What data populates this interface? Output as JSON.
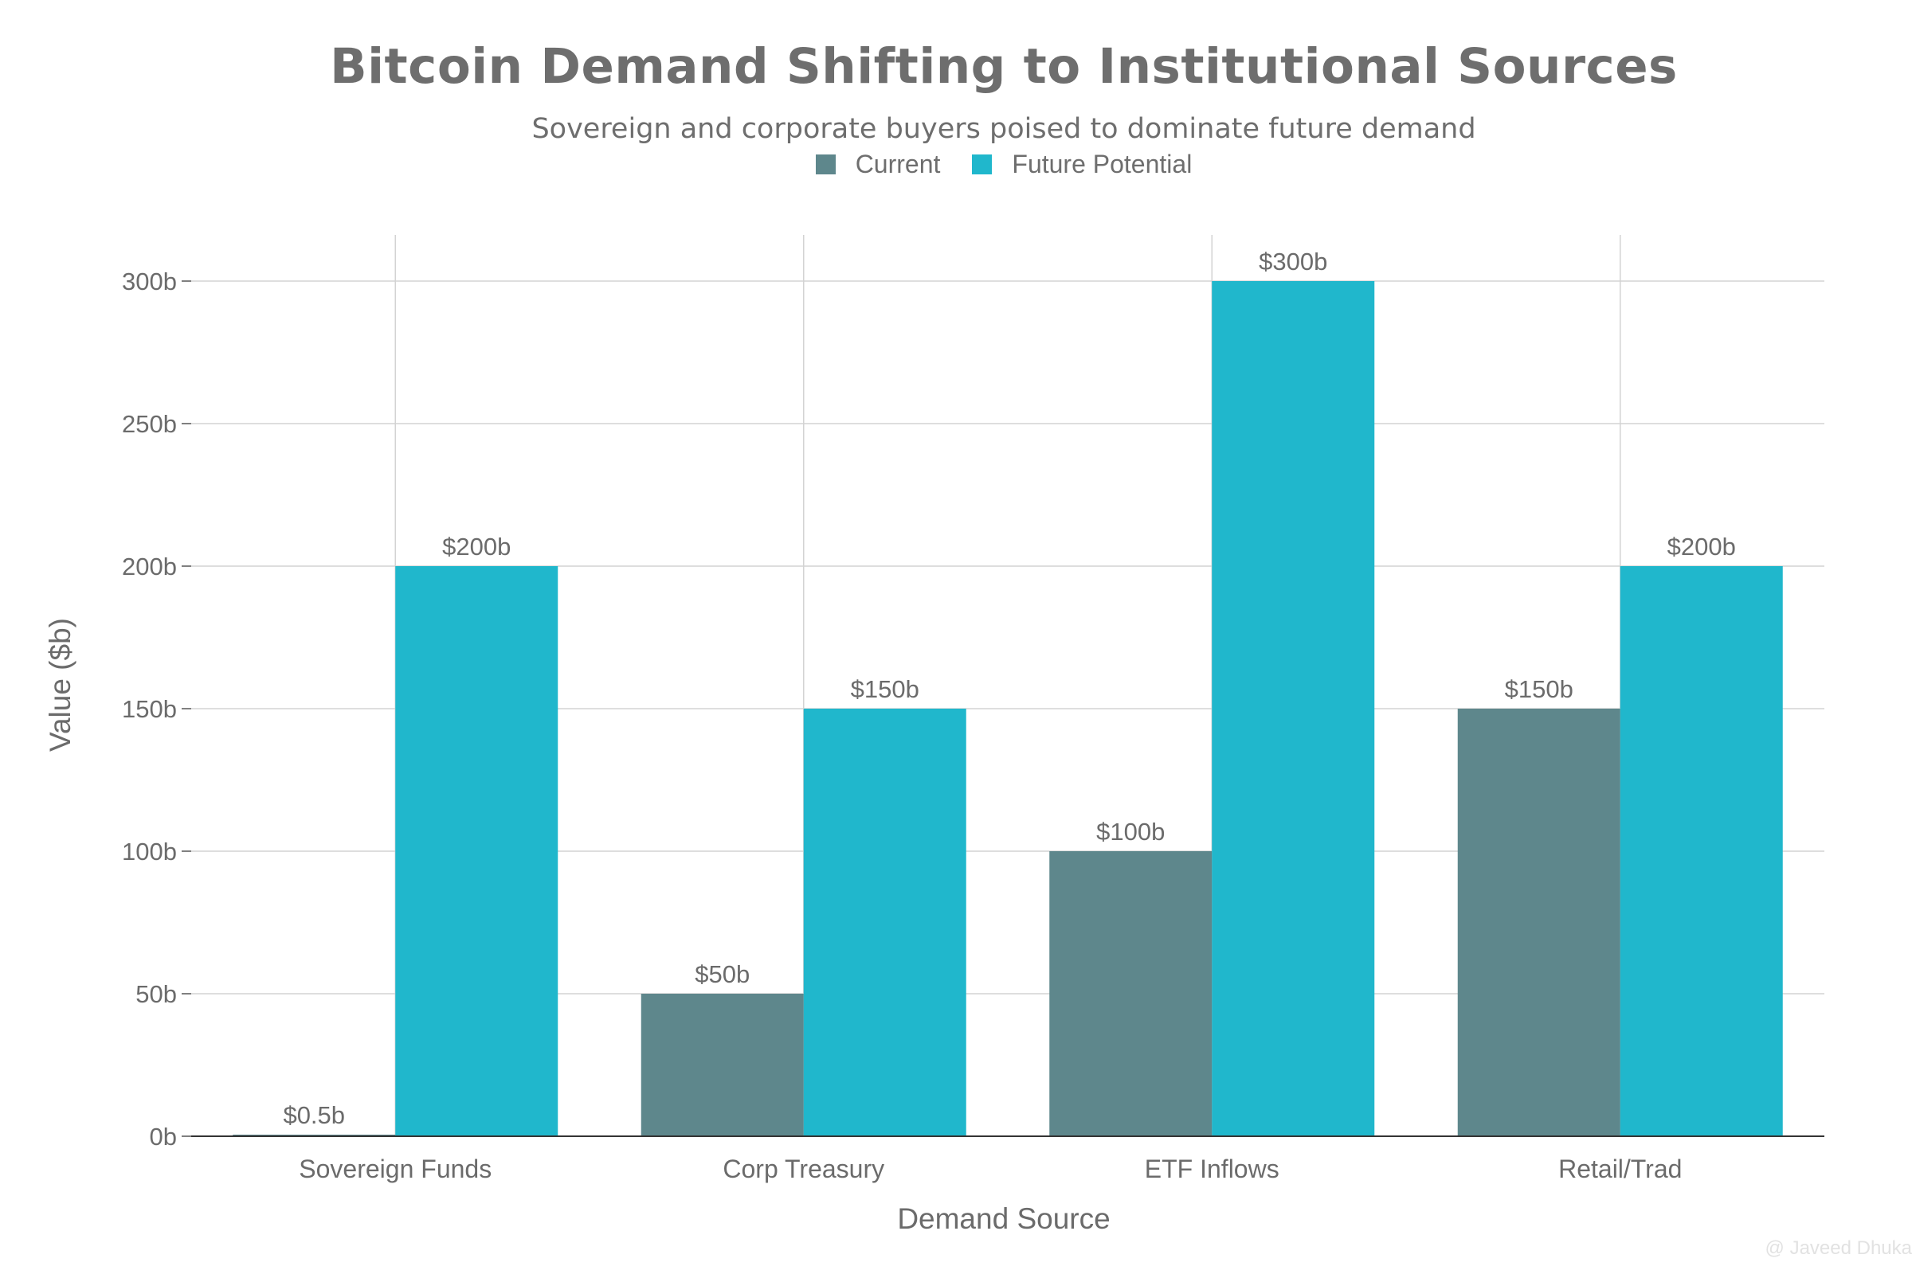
{
  "chart_data": {
    "type": "bar",
    "title": "Bitcoin Demand Shifting to Institutional Sources",
    "subtitle": "Sovereign and corporate buyers poised to dominate future demand",
    "xlabel": "Demand Source",
    "ylabel": "Value ($b)",
    "ylim": [
      0,
      315
    ],
    "yticks": [
      0,
      50,
      100,
      150,
      200,
      250,
      300
    ],
    "ytick_labels": [
      "0b",
      "50b",
      "100b",
      "150b",
      "200b",
      "250b",
      "300b"
    ],
    "categories": [
      "Sovereign Funds",
      "Corp Treasury",
      "ETF Inflows",
      "Retail/Trad"
    ],
    "series": [
      {
        "name": "Current",
        "color": "#5e878c",
        "values": [
          0.5,
          50,
          100,
          150
        ],
        "labels": [
          "$0.5b",
          "$50b",
          "$100b",
          "$150b"
        ]
      },
      {
        "name": "Future Potential",
        "color": "#20b7cc",
        "values": [
          200,
          150,
          300,
          200
        ],
        "labels": [
          "$200b",
          "$150b",
          "$300b",
          "$200b"
        ]
      }
    ],
    "grid": true,
    "legend": "top-center"
  },
  "watermark": "@ Javeed Dhuka"
}
